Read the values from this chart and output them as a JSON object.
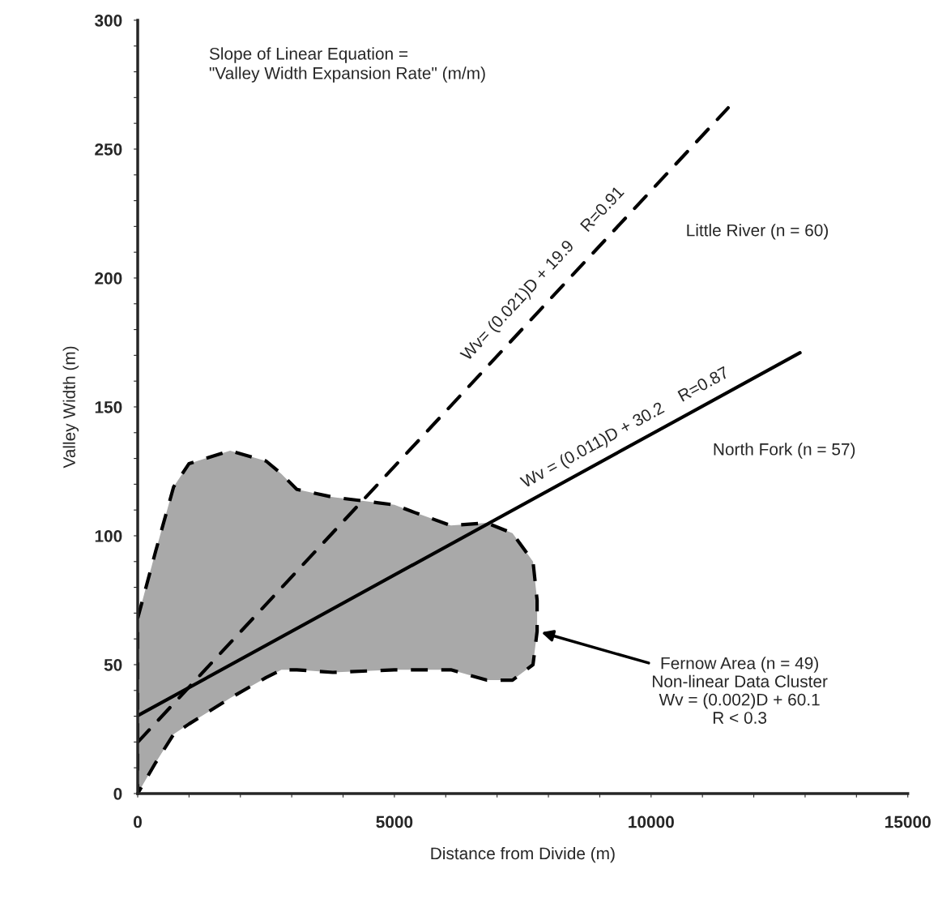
{
  "chart_data": {
    "type": "line",
    "xlabel": "Distance from Divide (m)",
    "ylabel": "Valley Width (m)",
    "xlim": [
      0,
      15000
    ],
    "ylim": [
      0,
      300
    ],
    "xticks": [
      0,
      {
        "value": 1000,
        "label": null
      },
      {
        "value": 2000,
        "label": null
      },
      {
        "value": 3000,
        "label": null
      },
      {
        "value": 4000,
        "label": null
      },
      5000,
      {
        "value": 6000,
        "label": null
      },
      {
        "value": 7000,
        "label": null
      },
      {
        "value": 8000,
        "label": null
      },
      {
        "value": 9000,
        "label": null
      },
      10000,
      {
        "value": 11000,
        "label": null
      },
      {
        "value": 12000,
        "label": null
      },
      {
        "value": 13000,
        "label": null
      },
      {
        "value": 14000,
        "label": null
      },
      15000
    ],
    "yticks": [
      0,
      {
        "value": 10,
        "label": null
      },
      {
        "value": 20,
        "label": null
      },
      {
        "value": 30,
        "label": null
      },
      {
        "value": 40,
        "label": null
      },
      50,
      {
        "value": 60,
        "label": null
      },
      {
        "value": 70,
        "label": null
      },
      {
        "value": 80,
        "label": null
      },
      {
        "value": 90,
        "label": null
      },
      100,
      {
        "value": 110,
        "label": null
      },
      {
        "value": 120,
        "label": null
      },
      {
        "value": 130,
        "label": null
      },
      {
        "value": 140,
        "label": null
      },
      150,
      {
        "value": 160,
        "label": null
      },
      {
        "value": 170,
        "label": null
      },
      {
        "value": 180,
        "label": null
      },
      {
        "value": 190,
        "label": null
      },
      200,
      {
        "value": 210,
        "label": null
      },
      {
        "value": 220,
        "label": null
      },
      {
        "value": 230,
        "label": null
      },
      {
        "value": 240,
        "label": null
      },
      250,
      {
        "value": 260,
        "label": null
      },
      {
        "value": 270,
        "label": null
      },
      {
        "value": 280,
        "label": null
      },
      {
        "value": 290,
        "label": null
      },
      300
    ],
    "grid": false,
    "series": [
      {
        "type": "area",
        "color": "#a9a9a9",
        "line_style": "dashed",
        "x": [
          0,
          350,
          700,
          1000,
          1800,
          2500,
          2800,
          3100,
          3800,
          5000,
          5400,
          6100,
          6800,
          7300,
          7700,
          7780,
          7780,
          7700,
          7300,
          6800,
          6100,
          5400,
          5000,
          3800,
          3100,
          2800,
          2500,
          1800,
          1000,
          700,
          350,
          0
        ],
        "values": [
          68,
          94,
          119,
          128,
          133,
          129,
          124,
          118,
          115,
          112,
          109,
          104,
          105,
          101,
          90,
          75,
          63,
          50,
          44,
          44,
          48,
          48,
          48,
          47,
          48,
          48,
          45,
          37,
          27,
          23,
          12,
          0
        ]
      },
      {
        "type": "line",
        "name": "Little River (n = 60)",
        "color": "#000000",
        "line_style": "dashed",
        "x": [
          0,
          11500
        ],
        "values": [
          19.9,
          266
        ]
      },
      {
        "type": "line",
        "name": "North Fork (n = 57)",
        "color": "#000000",
        "line_style": "solid",
        "x": [
          0,
          12900
        ],
        "values": [
          30.2,
          171
        ]
      }
    ],
    "annotations": [
      "Slope of Linear Equation =\n\"Valley Width Expansion Rate\" (m/m)",
      {
        "text": "Wv= (0.021)D + 19.9    R=0.91",
        "x": 7900,
        "y": 185.8
      },
      {
        "text": "Wv = (0.011)D + 30.2    R=0.87",
        "x": 9500,
        "y": 134.7
      },
      "Fernow Area (n = 49)\nNon-linear Data Cluster\nWv = (0.002)D + 60.1\nR < 0.3"
    ]
  }
}
